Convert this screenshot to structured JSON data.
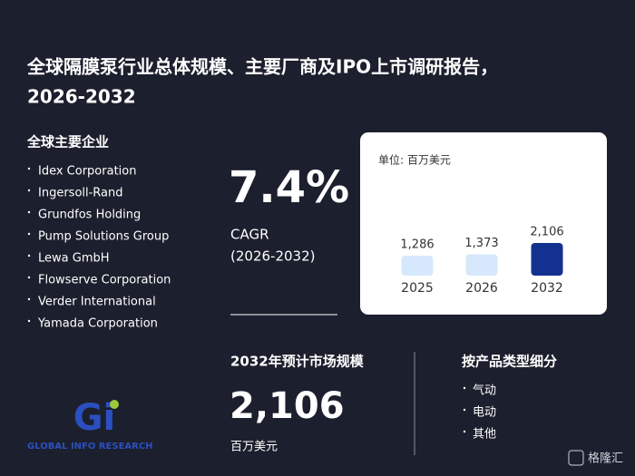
{
  "header": {
    "title_line1": "全球隔膜泵行业总体规模、主要厂商及IPO上市调研报告，",
    "title_line2": "2026-2032"
  },
  "companies": {
    "heading": "全球主要企业",
    "items": [
      "Idex Corporation",
      "Ingersoll-Rand",
      "Grundfos Holding",
      "Pump Solutions Group",
      "Lewa GmbH",
      "Flowserve Corporation",
      "Verder International",
      "Yamada Corporation"
    ]
  },
  "cagr": {
    "value": "7.4%",
    "label": "CAGR",
    "period": "(2026-2032)"
  },
  "chart_data": {
    "type": "bar",
    "unit": "单位: 百万美元",
    "categories": [
      "2025",
      "2026",
      "2032"
    ],
    "values": [
      1286,
      1373,
      2106
    ],
    "value_labels": [
      "1,286",
      "1,373",
      "2,106"
    ],
    "colors": [
      "#d6e8fb",
      "#d6e8fb",
      "#13318f"
    ]
  },
  "market": {
    "heading": "2032年预计市场规模",
    "value": "2,106",
    "unit": "百万美元"
  },
  "segments": {
    "heading": "按产品类型细分",
    "items": [
      "气动",
      "电动",
      "其他"
    ]
  },
  "logo": {
    "mark": "Gi",
    "text": "GLOBAL INFO RESEARCH"
  },
  "watermark": "格隆汇"
}
